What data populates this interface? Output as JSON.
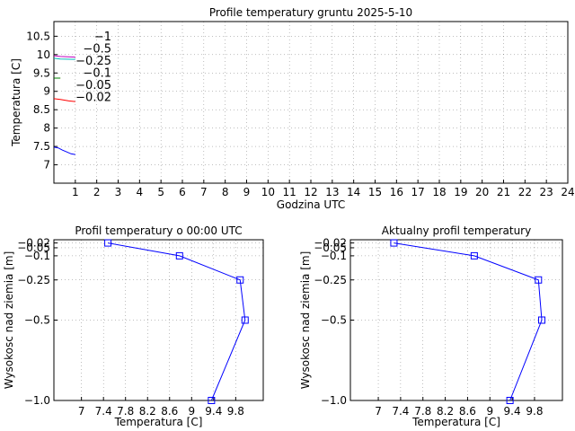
{
  "chart_data": [
    {
      "type": "line",
      "title": "Profile temperatury gruntu 2025-5-10",
      "xlabel": "Godzina UTC",
      "ylabel": "Temperatura [C]",
      "xlim": [
        0,
        24
      ],
      "ylim": [
        6.5,
        10.9
      ],
      "xticks": [
        "1",
        "2",
        "3",
        "4",
        "5",
        "6",
        "7",
        "8",
        "9",
        "10",
        "11",
        "12",
        "13",
        "14",
        "15",
        "16",
        "17",
        "18",
        "19",
        "20",
        "21",
        "22",
        "23",
        "24"
      ],
      "yticks": [
        "7",
        "7.5",
        "8",
        "8.5",
        "9",
        "9.5",
        "10",
        "10.5"
      ],
      "grid": true,
      "legend": "inline, upper-left",
      "series": [
        {
          "name": "−1",
          "color": "#c8b400",
          "x": [
            0,
            0.3
          ],
          "y": [
            9.36,
            9.36
          ]
        },
        {
          "name": "−0.5",
          "color": "#c000c0",
          "x": [
            0,
            0.3,
            1.0
          ],
          "y": [
            9.97,
            9.95,
            9.93
          ]
        },
        {
          "name": "−0.25",
          "color": "#00b8b8",
          "x": [
            0,
            0.3,
            1.0
          ],
          "y": [
            9.9,
            9.88,
            9.87
          ]
        },
        {
          "name": "−0.1",
          "color": "#ff0000",
          "x": [
            0,
            0.3,
            0.7,
            1.0
          ],
          "y": [
            8.8,
            8.78,
            8.74,
            8.72
          ]
        },
        {
          "name": "−0.05",
          "color": "#008000",
          "x": [
            0,
            0.3
          ],
          "y": [
            9.36,
            9.36
          ]
        },
        {
          "name": "−0.02",
          "color": "#0000ff",
          "x": [
            0,
            0.2,
            0.4,
            0.6,
            0.8,
            1.0
          ],
          "y": [
            7.48,
            7.46,
            7.4,
            7.35,
            7.3,
            7.28
          ]
        }
      ]
    },
    {
      "type": "line",
      "title": "Profil temperatury o 00:00 UTC",
      "xlabel": "Temperatura [C]",
      "ylabel": "Wysokosc nad ziemia [m]",
      "xlim": [
        6.5,
        10.3
      ],
      "xticks": [
        "7",
        "7.4",
        "7.8",
        "8.2",
        "8.6",
        "9",
        "9.4",
        "9.8"
      ],
      "yticks": [
        "−0.02",
        "−0.05",
        "−0.1",
        "−0.25",
        "−0.5",
        "−1.0"
      ],
      "grid": true,
      "series": [
        {
          "color": "#0000ff",
          "marker": "square",
          "x": [
            7.48,
            8.78,
            9.88,
            9.97,
            9.36
          ],
          "y": [
            -0.02,
            -0.1,
            -0.25,
            -0.5,
            -1.0
          ]
        }
      ]
    },
    {
      "type": "line",
      "title": "Aktualny profil temperatury",
      "xlabel": "Temperatura [C]",
      "ylabel": "Wysokosc nad ziemia [m]",
      "xlim": [
        6.5,
        10.3
      ],
      "xticks": [
        "7",
        "7.4",
        "7.8",
        "8.2",
        "8.6",
        "9",
        "9.4",
        "9.8"
      ],
      "yticks": [
        "−0.02",
        "−0.05",
        "−0.1",
        "−0.25",
        "−0.5",
        "−1.0"
      ],
      "grid": true,
      "series": [
        {
          "color": "#0000ff",
          "marker": "square",
          "x": [
            7.28,
            8.72,
            9.87,
            9.93,
            9.36
          ],
          "y": [
            -0.02,
            -0.1,
            -0.25,
            -0.5,
            -1.0
          ]
        }
      ]
    }
  ]
}
